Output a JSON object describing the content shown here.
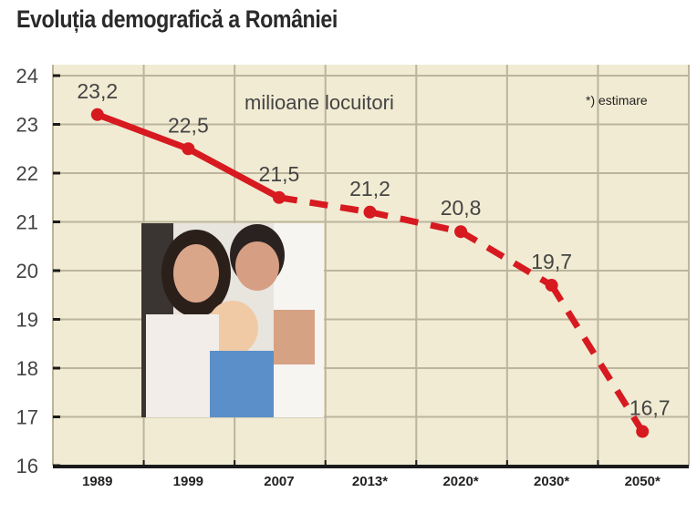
{
  "chart_data": {
    "type": "line",
    "title": "Evoluția demografică a României",
    "unit_label": "milioane locuitori",
    "note": "*) estimare",
    "categories": [
      "1989",
      "1999",
      "2007",
      "2013*",
      "2020*",
      "2030*",
      "2050*"
    ],
    "values": [
      23.2,
      22.5,
      21.5,
      21.2,
      20.8,
      19.7,
      16.7
    ],
    "value_labels": [
      "23,2",
      "22,5",
      "21,5",
      "21,2",
      "20,8",
      "19,7",
      "16,7"
    ],
    "estimated_from_index": 2,
    "ylim": [
      16,
      24
    ],
    "yticks": [
      16,
      17,
      18,
      19,
      20,
      21,
      22,
      23,
      24
    ],
    "grid": true,
    "colors": {
      "line": "#d71920",
      "background": "#f1ebd3",
      "grid": "#bcb49c",
      "axis": "#1a1a1a",
      "text": "#444444"
    }
  }
}
